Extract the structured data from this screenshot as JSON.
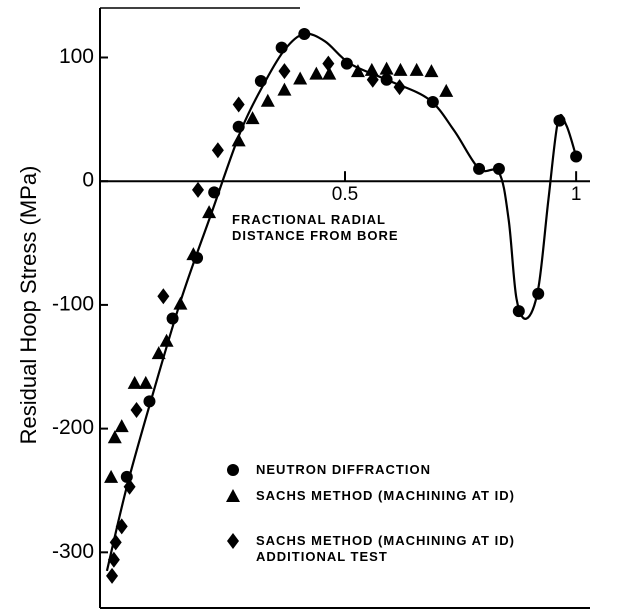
{
  "chart_data": {
    "type": "scatter",
    "y_label": "Residual Hoop Stress (MPa)",
    "x_label": "FRACTIONAL RADIAL\nDISTANCE FROM BORE",
    "xlim": [
      -0.03,
      1.03
    ],
    "ylim": [
      -345,
      140
    ],
    "xticks": [
      0.5,
      1
    ],
    "yticks": [
      100,
      0,
      -100,
      -200,
      -300
    ],
    "series": [
      {
        "name": "NEUTRON DIFFRACTION",
        "marker": "circle",
        "color": "#000000",
        "x": [
          0.028,
          0.077,
          0.127,
          0.18,
          0.217,
          0.27,
          0.318,
          0.363,
          0.412,
          0.504,
          0.59,
          0.69,
          0.79,
          0.833,
          0.876,
          0.918,
          0.964,
          1.0
        ],
        "values": [
          -239,
          -178,
          -111,
          -62,
          -9,
          44,
          81,
          108,
          119,
          95,
          82,
          64,
          10,
          10,
          -105,
          -91,
          49,
          20
        ]
      },
      {
        "name": "SACHS METHOD (MACHINING AT ID)",
        "marker": "triangle",
        "color": "#000000",
        "x": [
          -0.006,
          0.002,
          0.017,
          0.045,
          0.069,
          0.097,
          0.114,
          0.144,
          0.172,
          0.206,
          0.27,
          0.3,
          0.333,
          0.369,
          0.403,
          0.438,
          0.466,
          0.528,
          0.558,
          0.59,
          0.62,
          0.655,
          0.687,
          0.719
        ],
        "values": [
          -239,
          -207,
          -198,
          -163,
          -163,
          -139,
          -129,
          -99,
          -59,
          -25,
          33,
          51,
          65,
          74,
          83,
          87,
          87,
          89,
          90,
          91,
          90,
          90,
          89,
          73
        ]
      },
      {
        "name": "SACHS METHOD (MACHINING AT ID)\nADDITIONAL TEST",
        "marker": "diamond",
        "color": "#000000",
        "x": [
          -0.004,
          0.0,
          0.004,
          0.017,
          0.034,
          0.049,
          0.107,
          0.182,
          0.225,
          0.27,
          0.369,
          0.464,
          0.56,
          0.618
        ],
        "values": [
          -319,
          -306,
          -292,
          -279,
          -247,
          -185,
          -93,
          -7,
          25,
          62,
          89,
          95,
          82,
          76
        ]
      }
    ],
    "curve": {
      "color": "#000000",
      "x": [
        -0.015,
        0.028,
        0.082,
        0.146,
        0.21,
        0.275,
        0.328,
        0.371,
        0.412,
        0.457,
        0.511,
        0.597,
        0.682,
        0.736,
        0.79,
        0.833,
        0.854,
        0.871,
        0.893,
        0.918,
        0.94,
        0.961,
        0.979,
        1.0
      ],
      "values": [
        -315,
        -247,
        -175,
        -95,
        -27,
        41,
        81,
        107,
        119,
        113,
        95,
        81,
        66,
        41,
        10,
        7,
        -31,
        -95,
        -111,
        -87,
        -15,
        49,
        45,
        20
      ]
    }
  }
}
